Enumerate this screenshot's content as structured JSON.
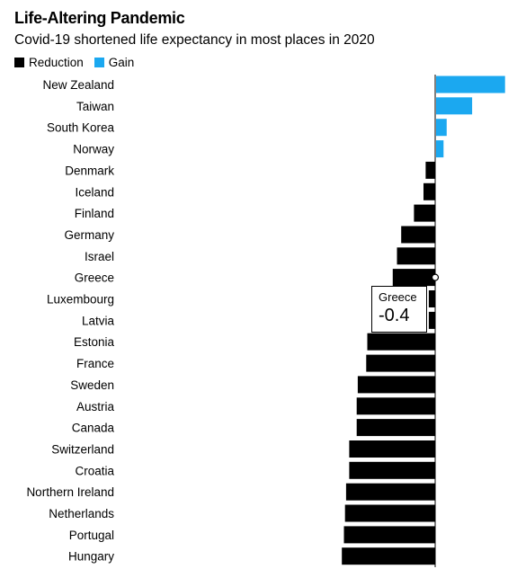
{
  "title": "Life-Altering Pandemic",
  "subtitle": "Covid-19 shortened life expectancy in most places in 2020",
  "legend": [
    {
      "label": "Reduction",
      "color": "#000000"
    },
    {
      "label": "Gain",
      "color": "#1ba8f0"
    }
  ],
  "tooltip": {
    "name": "Greece",
    "value": "-0.4"
  },
  "chart_data": {
    "type": "bar",
    "orientation": "horizontal",
    "categories": [
      "New Zealand",
      "Taiwan",
      "South Korea",
      "Norway",
      "Denmark",
      "Iceland",
      "Finland",
      "Germany",
      "Israel",
      "Greece",
      "Luxembourg",
      "Latvia",
      "Estonia",
      "France",
      "Sweden",
      "Austria",
      "Canada",
      "Switzerland",
      "Croatia",
      "Northern Ireland",
      "Netherlands",
      "Portugal",
      "Hungary"
    ],
    "values": [
      0.65,
      0.34,
      0.1,
      0.07,
      -0.09,
      -0.11,
      -0.2,
      -0.32,
      -0.36,
      -0.4,
      -0.06,
      -0.06,
      -0.64,
      -0.65,
      -0.73,
      -0.74,
      -0.74,
      -0.81,
      -0.81,
      -0.84,
      -0.85,
      -0.86,
      -0.88
    ],
    "colors": {
      "negative": "#000000",
      "positive": "#1ba8f0"
    },
    "highlight": "Greece",
    "xlim": [
      -1.0,
      0.65
    ],
    "grid": false,
    "legend_position": "top-left"
  }
}
